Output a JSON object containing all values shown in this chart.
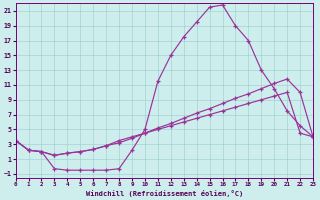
{
  "xlabel": "Windchill (Refroidissement éolien,°C)",
  "xlim": [
    0,
    23
  ],
  "ylim": [
    -1.5,
    22
  ],
  "yticks": [
    -1,
    1,
    3,
    5,
    7,
    9,
    11,
    13,
    15,
    17,
    19,
    21
  ],
  "xticks": [
    0,
    1,
    2,
    3,
    4,
    5,
    6,
    7,
    8,
    9,
    10,
    11,
    12,
    13,
    14,
    15,
    16,
    17,
    18,
    19,
    20,
    21,
    22,
    23
  ],
  "bg_color": "#ceeeed",
  "line_color": "#993399",
  "line1_x": [
    0,
    1,
    2,
    3,
    4,
    5,
    6,
    7,
    8,
    9,
    10,
    11,
    12,
    13,
    14,
    15,
    16,
    17,
    18,
    19,
    20,
    21,
    22,
    23
  ],
  "line1_y": [
    3.5,
    2.2,
    2.0,
    -0.3,
    -0.5,
    -0.5,
    -0.5,
    -0.5,
    -0.3,
    2.2,
    5.0,
    11.5,
    15.0,
    17.5,
    19.5,
    21.5,
    21.8,
    19.0,
    17.0,
    13.0,
    10.5,
    7.5,
    5.5,
    4.0
  ],
  "line2_x": [
    0,
    1,
    2,
    3,
    4,
    5,
    6,
    7,
    8,
    9,
    10,
    11,
    12,
    13,
    14,
    15,
    16,
    17,
    18,
    19,
    20,
    21,
    22,
    23
  ],
  "line2_y": [
    3.5,
    2.2,
    2.0,
    1.5,
    1.8,
    2.0,
    2.3,
    2.8,
    3.2,
    3.8,
    4.5,
    5.2,
    5.8,
    6.5,
    7.2,
    7.8,
    8.5,
    9.2,
    9.8,
    10.5,
    11.2,
    11.8,
    10.0,
    4.0
  ],
  "line3_x": [
    0,
    1,
    2,
    3,
    4,
    5,
    6,
    7,
    8,
    9,
    10,
    11,
    12,
    13,
    14,
    15,
    16,
    17,
    18,
    19,
    20,
    21,
    22,
    23
  ],
  "line3_y": [
    3.5,
    2.2,
    2.0,
    1.5,
    1.8,
    2.0,
    2.3,
    2.8,
    3.5,
    4.0,
    4.5,
    5.0,
    5.5,
    6.0,
    6.5,
    7.0,
    7.5,
    8.0,
    8.5,
    9.0,
    9.5,
    10.0,
    4.5,
    4.0
  ]
}
